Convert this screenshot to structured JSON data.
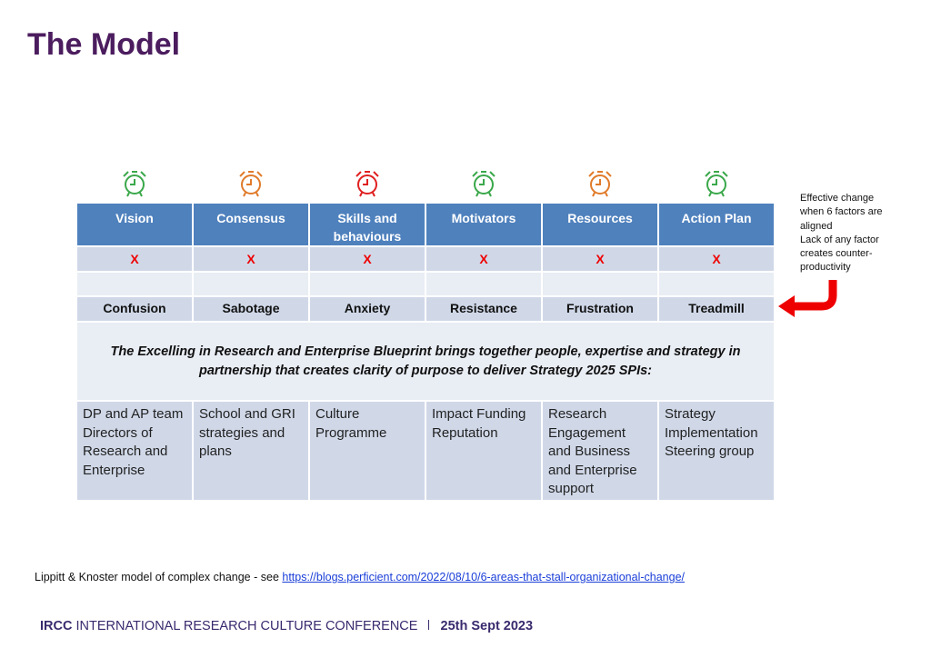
{
  "title": "The Model",
  "table": {
    "headers": [
      "Vision",
      "Consensus",
      "Skills and behaviours",
      "Motivators",
      "Resources",
      "Action Plan"
    ],
    "marks": [
      "X",
      "X",
      "X",
      "X",
      "X",
      "X"
    ],
    "outcomes": [
      "Confusion",
      "Sabotage",
      "Anxiety",
      "Resistance",
      "Frustration",
      "Treadmill"
    ],
    "blueprint": "The Excelling in Research and Enterprise Blueprint brings together people, expertise and strategy in partnership that creates clarity of purpose to deliver Strategy 2025 SPIs:",
    "cells": [
      "DP and AP team Directors of Research and Enterprise",
      "School and GRI strategies and plans",
      "Culture Programme",
      "Impact Funding Reputation",
      "Research Engagement and Business and Enterprise support",
      "Strategy Implementation Steering group"
    ]
  },
  "side_note": [
    "Effective change when 6 factors are aligned",
    "Lack of any factor creates counter-productivity"
  ],
  "source": {
    "text": "Lippitt & Knoster model of complex change - see ",
    "link": "https://blogs.perficient.com/2022/08/10/6-areas-that-stall-organizational-change/"
  },
  "footer": {
    "org": "IRCC",
    "name": "INTERNATIONAL RESEARCH CULTURE CONFERENCE",
    "date": "25th Sept 2023"
  }
}
